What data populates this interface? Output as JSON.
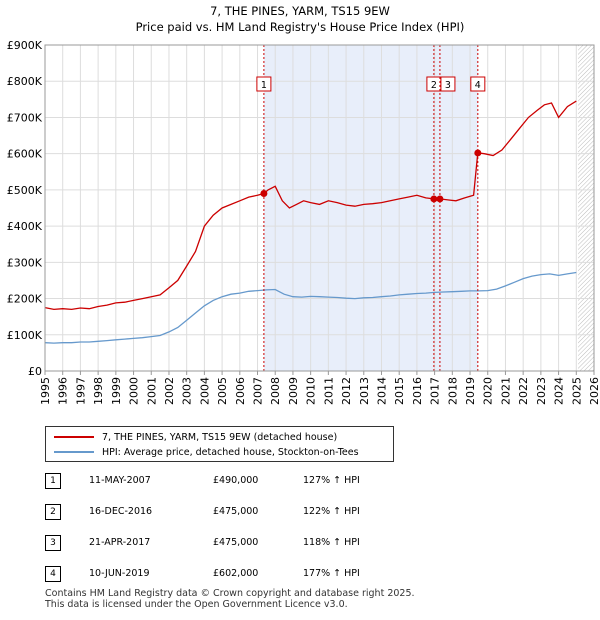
{
  "chart_data": {
    "type": "line",
    "title": "7, THE PINES, YARM, TS15 9EW",
    "subtitle": "Price paid vs. HM Land Registry's House Price Index (HPI)",
    "xlabel": "",
    "ylabel": "",
    "xlim": [
      1995,
      2026
    ],
    "ylim": [
      0,
      900000
    ],
    "y_ticks": [
      0,
      100000,
      200000,
      300000,
      400000,
      500000,
      600000,
      700000,
      800000,
      900000
    ],
    "y_tick_labels": [
      "£0",
      "£100K",
      "£200K",
      "£300K",
      "£400K",
      "£500K",
      "£600K",
      "£700K",
      "£800K",
      "£900K"
    ],
    "x_tick_labels": [
      "1995",
      "1996",
      "1997",
      "1998",
      "1999",
      "2000",
      "2001",
      "2002",
      "2003",
      "2004",
      "2005",
      "2006",
      "2007",
      "2008",
      "2009",
      "2010",
      "2011",
      "2012",
      "2013",
      "2014",
      "2015",
      "2016",
      "2017",
      "2018",
      "2019",
      "2020",
      "2021",
      "2022",
      "2023",
      "2024",
      "2025",
      "2026"
    ],
    "grid": true,
    "shaded_region": [
      2007.36,
      2019.44
    ],
    "forecast_start": 2025.1,
    "series": [
      {
        "name": "7, THE PINES, YARM, TS15 9EW (detached house)",
        "color": "#cc0000",
        "x": [
          1995.0,
          1995.5,
          1996.0,
          1996.5,
          1997.0,
          1997.5,
          1998.0,
          1998.5,
          1999.0,
          1999.5,
          2000.0,
          2000.5,
          2001.0,
          2001.5,
          2002.0,
          2002.5,
          2003.0,
          2003.5,
          2004.0,
          2004.5,
          2005.0,
          2005.5,
          2006.0,
          2006.5,
          2007.0,
          2007.36,
          2007.6,
          2008.0,
          2008.4,
          2008.8,
          2009.2,
          2009.6,
          2010.0,
          2010.5,
          2011.0,
          2011.5,
          2012.0,
          2012.5,
          2013.0,
          2013.5,
          2014.0,
          2014.5,
          2015.0,
          2015.5,
          2016.0,
          2016.5,
          2016.96,
          2017.3,
          2017.8,
          2018.2,
          2018.7,
          2019.2,
          2019.44,
          2019.8,
          2020.3,
          2020.8,
          2021.3,
          2021.8,
          2022.3,
          2022.8,
          2023.2,
          2023.6,
          2024.0,
          2024.5,
          2025.0
        ],
        "y": [
          175000,
          170000,
          172000,
          170000,
          174000,
          172000,
          178000,
          182000,
          188000,
          190000,
          195000,
          200000,
          205000,
          210000,
          230000,
          250000,
          290000,
          330000,
          400000,
          430000,
          450000,
          460000,
          470000,
          480000,
          485000,
          490000,
          500000,
          510000,
          470000,
          450000,
          460000,
          470000,
          465000,
          460000,
          470000,
          465000,
          458000,
          455000,
          460000,
          462000,
          465000,
          470000,
          475000,
          480000,
          485000,
          478000,
          475000,
          475000,
          472000,
          470000,
          478000,
          485000,
          602000,
          600000,
          595000,
          610000,
          640000,
          670000,
          700000,
          720000,
          735000,
          740000,
          700000,
          730000,
          745000
        ]
      },
      {
        "name": "HPI: Average price, detached house, Stockton-on-Tees",
        "color": "#6699cc",
        "x": [
          1995.0,
          1995.5,
          1996.0,
          1996.5,
          1997.0,
          1997.5,
          1998.0,
          1998.5,
          1999.0,
          1999.5,
          2000.0,
          2000.5,
          2001.0,
          2001.5,
          2002.0,
          2002.5,
          2003.0,
          2003.5,
          2004.0,
          2004.5,
          2005.0,
          2005.5,
          2006.0,
          2006.5,
          2007.0,
          2007.5,
          2008.0,
          2008.5,
          2009.0,
          2009.5,
          2010.0,
          2010.5,
          2011.0,
          2011.5,
          2012.0,
          2012.5,
          2013.0,
          2013.5,
          2014.0,
          2014.5,
          2015.0,
          2015.5,
          2016.0,
          2016.5,
          2017.0,
          2017.5,
          2018.0,
          2018.5,
          2019.0,
          2019.5,
          2020.0,
          2020.5,
          2021.0,
          2021.5,
          2022.0,
          2022.5,
          2023.0,
          2023.5,
          2024.0,
          2024.5,
          2025.0
        ],
        "y": [
          78000,
          77000,
          78000,
          78000,
          80000,
          80000,
          82000,
          84000,
          86000,
          88000,
          90000,
          92000,
          95000,
          98000,
          108000,
          120000,
          140000,
          160000,
          180000,
          195000,
          205000,
          212000,
          215000,
          220000,
          222000,
          224000,
          225000,
          212000,
          205000,
          204000,
          206000,
          205000,
          204000,
          203000,
          201000,
          200000,
          202000,
          203000,
          205000,
          207000,
          210000,
          212000,
          214000,
          215000,
          217000,
          218000,
          219000,
          220000,
          221000,
          221000,
          222000,
          226000,
          235000,
          245000,
          255000,
          262000,
          266000,
          268000,
          264000,
          268000,
          272000
        ]
      }
    ],
    "sale_markers": [
      {
        "label": "1",
        "x": 2007.36,
        "y": 490000
      },
      {
        "label": "2",
        "x": 2016.96,
        "y": 475000
      },
      {
        "label": "3",
        "x": 2017.3,
        "y": 475000
      },
      {
        "label": "4",
        "x": 2019.44,
        "y": 602000
      }
    ]
  },
  "legend": {
    "items": [
      {
        "label": "7, THE PINES, YARM, TS15 9EW (detached house)",
        "color": "#cc0000"
      },
      {
        "label": "HPI: Average price, detached house, Stockton-on-Tees",
        "color": "#6699cc"
      }
    ]
  },
  "sales": [
    {
      "num": "1",
      "date": "11-MAY-2007",
      "price": "£490,000",
      "hpi": "127% ↑ HPI"
    },
    {
      "num": "2",
      "date": "16-DEC-2016",
      "price": "£475,000",
      "hpi": "122% ↑ HPI"
    },
    {
      "num": "3",
      "date": "21-APR-2017",
      "price": "£475,000",
      "hpi": "118% ↑ HPI"
    },
    {
      "num": "4",
      "date": "10-JUN-2019",
      "price": "£602,000",
      "hpi": "177% ↑ HPI"
    }
  ],
  "footer": {
    "line1": "Contains HM Land Registry data © Crown copyright and database right 2025.",
    "line2": "This data is licensed under the Open Government Licence v3.0."
  }
}
